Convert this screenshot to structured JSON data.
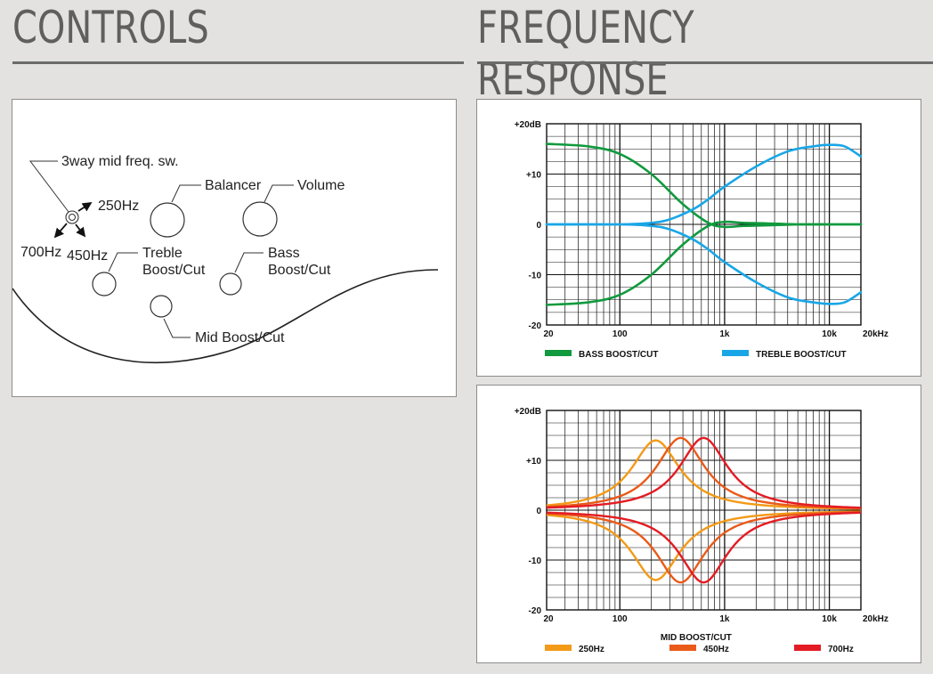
{
  "headings": {
    "controls": "CONTROLS",
    "frequency_response": "FREQUENCY RESPONSE"
  },
  "controls_diagram": {
    "labels": {
      "switch": "3way mid freq. sw.",
      "sw_250": "250Hz",
      "sw_700": "700Hz",
      "sw_450": "450Hz",
      "balancer": "Balancer",
      "volume": "Volume",
      "treble_1": "Treble",
      "treble_2": "Boost/Cut",
      "bass_1": "Bass",
      "bass_2": "Boost/Cut",
      "mid": "Mid Boost/Cut"
    }
  },
  "colors": {
    "bass": "#119a3e",
    "treble": "#19a6e6",
    "f250": "#f39a18",
    "f450": "#ea5a19",
    "f700": "#e31c24"
  },
  "chart_data": [
    {
      "type": "line",
      "x_scale": "log",
      "xlim": [
        20,
        20000
      ],
      "ylim": [
        -20,
        20
      ],
      "x_tick_labels": [
        "20",
        "100",
        "1k",
        "10k",
        "20kHz"
      ],
      "y_tick_labels": [
        "+20dB",
        "+10",
        "0",
        "-10",
        "-20"
      ],
      "x_label": "",
      "grid": true,
      "legend_position": "bottom",
      "series": [
        {
          "name": "BASS BOOST/CUT",
          "color": "#119a3e",
          "x": [
            20,
            50,
            100,
            200,
            400,
            700,
            1000,
            1500,
            2500,
            5000,
            10000,
            20000
          ],
          "y": [
            16,
            15.5,
            14,
            10,
            4,
            0.3,
            -0.5,
            -0.3,
            -0.2,
            0,
            0,
            0
          ]
        },
        {
          "name": "BASS BOOST/CUT",
          "color": "#119a3e",
          "x": [
            20,
            50,
            100,
            200,
            400,
            700,
            1000,
            1500,
            2500,
            5000,
            10000,
            20000
          ],
          "y": [
            -16,
            -15.5,
            -14,
            -10,
            -4,
            -0.3,
            0.5,
            0.3,
            0.2,
            0,
            0,
            0
          ]
        },
        {
          "name": "TREBLE BOOST/CUT",
          "color": "#19a6e6",
          "x": [
            20,
            100,
            200,
            300,
            500,
            700,
            1000,
            2000,
            4000,
            7000,
            10000,
            14000,
            20000
          ],
          "y": [
            0,
            0,
            0.3,
            1,
            3,
            5,
            7.5,
            11.5,
            14.5,
            15.5,
            15.8,
            15.5,
            13.5
          ]
        },
        {
          "name": "TREBLE BOOST/CUT",
          "color": "#19a6e6",
          "x": [
            20,
            100,
            200,
            300,
            500,
            700,
            1000,
            2000,
            4000,
            7000,
            10000,
            14000,
            20000
          ],
          "y": [
            0,
            0,
            -0.3,
            -1,
            -3,
            -5,
            -7.5,
            -11.5,
            -14.5,
            -15.5,
            -15.8,
            -15.5,
            -13.5
          ]
        }
      ],
      "legend": [
        {
          "label": "BASS BOOST/CUT",
          "color": "#119a3e"
        },
        {
          "label": "TREBLE BOOST/CUT",
          "color": "#19a6e6"
        }
      ]
    },
    {
      "type": "line",
      "x_scale": "log",
      "xlim": [
        20,
        20000
      ],
      "ylim": [
        -20,
        20
      ],
      "x_tick_labels": [
        "20",
        "100",
        "1k",
        "10k",
        "20kHz"
      ],
      "y_tick_labels": [
        "+20dB",
        "+10",
        "0",
        "-10",
        "-20"
      ],
      "x_label": "MID BOOST/CUT",
      "grid": true,
      "legend_position": "bottom",
      "peaks": [
        {
          "name": "250Hz",
          "center_hz": 220,
          "gain_db": 14,
          "color": "#f39a18"
        },
        {
          "name": "450Hz",
          "center_hz": 380,
          "gain_db": 14.5,
          "color": "#ea5a19"
        },
        {
          "name": "700Hz",
          "center_hz": 630,
          "gain_db": 14.5,
          "color": "#e31c24"
        }
      ],
      "legend": [
        {
          "label": "250Hz",
          "color": "#f39a18"
        },
        {
          "label": "450Hz",
          "color": "#ea5a19"
        },
        {
          "label": "700Hz",
          "color": "#e31c24"
        }
      ]
    }
  ]
}
